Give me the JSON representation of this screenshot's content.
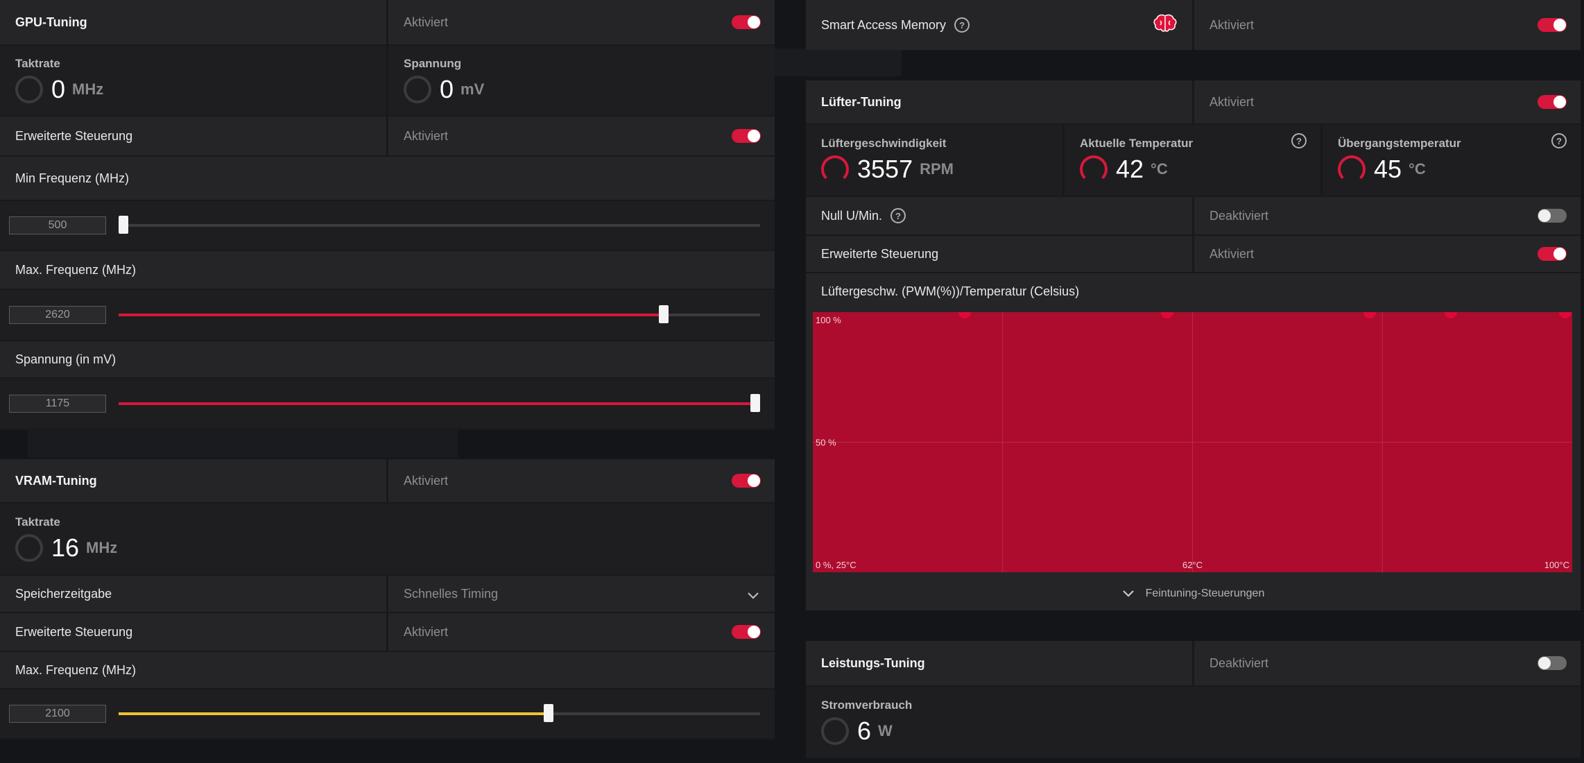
{
  "gpu_tuning": {
    "title": "GPU-Tuning",
    "state": "Aktiviert",
    "clock": {
      "label": "Taktrate",
      "value": "0",
      "unit": "MHz"
    },
    "voltage": {
      "label": "Spannung",
      "value": "0",
      "unit": "mV"
    },
    "advanced": {
      "label": "Erweiterte Steuerung",
      "state": "Aktiviert"
    },
    "min_freq": {
      "label": "Min Frequenz (MHz)",
      "value": "500",
      "level": 0.0
    },
    "max_freq": {
      "label": "Max. Frequenz (MHz)",
      "value": "2620",
      "level": 0.85
    },
    "volt_slider": {
      "label": "Spannung (in mV)",
      "value": "1175",
      "level": 1.0
    }
  },
  "vram_tuning": {
    "title": "VRAM-Tuning",
    "state": "Aktiviert",
    "clock": {
      "label": "Taktrate",
      "value": "16",
      "unit": "MHz"
    },
    "timing": {
      "label": "Speicherzeitgabe",
      "value": "Schnelles Timing"
    },
    "advanced": {
      "label": "Erweiterte Steuerung",
      "state": "Aktiviert"
    },
    "max_freq": {
      "label": "Max. Frequenz (MHz)",
      "value": "2100",
      "level": 0.67
    }
  },
  "smart_access": {
    "label": "Smart Access Memory",
    "icon": "brain-icon",
    "state": "Aktiviert"
  },
  "fan_tuning": {
    "title": "Lüfter-Tuning",
    "state": "Aktiviert",
    "fan_speed": {
      "label": "Lüftergeschwindigkeit",
      "value": "3557",
      "unit": "RPM"
    },
    "current_temp": {
      "label": "Aktuelle Temperatur",
      "value": "42",
      "unit": "°C"
    },
    "junction_temp": {
      "label": "Übergangstemperatur",
      "value": "45",
      "unit": "°C"
    },
    "zero_rpm": {
      "label": "Null U/Min.",
      "state": "Deaktiviert"
    },
    "advanced": {
      "label": "Erweiterte Steuerung",
      "state": "Aktiviert"
    },
    "curve_label": "Lüftergeschw. (PWM(%))/Temperatur (Celsius)",
    "fine_tuning": "Feintuning-Steuerungen"
  },
  "power_tuning": {
    "title": "Leistungs-Tuning",
    "state": "Deaktiviert",
    "consumption": {
      "label": "Stromverbrauch",
      "value": "6",
      "unit": "W"
    }
  },
  "colors": {
    "accent": "#d8173c",
    "chart_fill": "#ad0c2e",
    "vram_slider": "#f2c230"
  },
  "chart_data": {
    "type": "area",
    "xlabel": "",
    "ylabel": "",
    "x_range": [
      25,
      100
    ],
    "ylim": [
      0,
      100
    ],
    "y_tick_labels": [
      "100 %",
      "50 %"
    ],
    "x_tick_labels": [
      "0 %, 25°C",
      "62°C",
      "100°C"
    ],
    "series": [
      {
        "x": [
          25,
          40,
          60,
          80,
          88,
          100
        ],
        "y": [
          100,
          100,
          100,
          100,
          100,
          100
        ]
      }
    ],
    "points": [
      {
        "x": 40,
        "y": 100
      },
      {
        "x": 60,
        "y": 100
      },
      {
        "x": 80,
        "y": 100
      },
      {
        "x": 88,
        "y": 100
      },
      {
        "x": 100,
        "y": 100
      }
    ],
    "grid": true
  }
}
